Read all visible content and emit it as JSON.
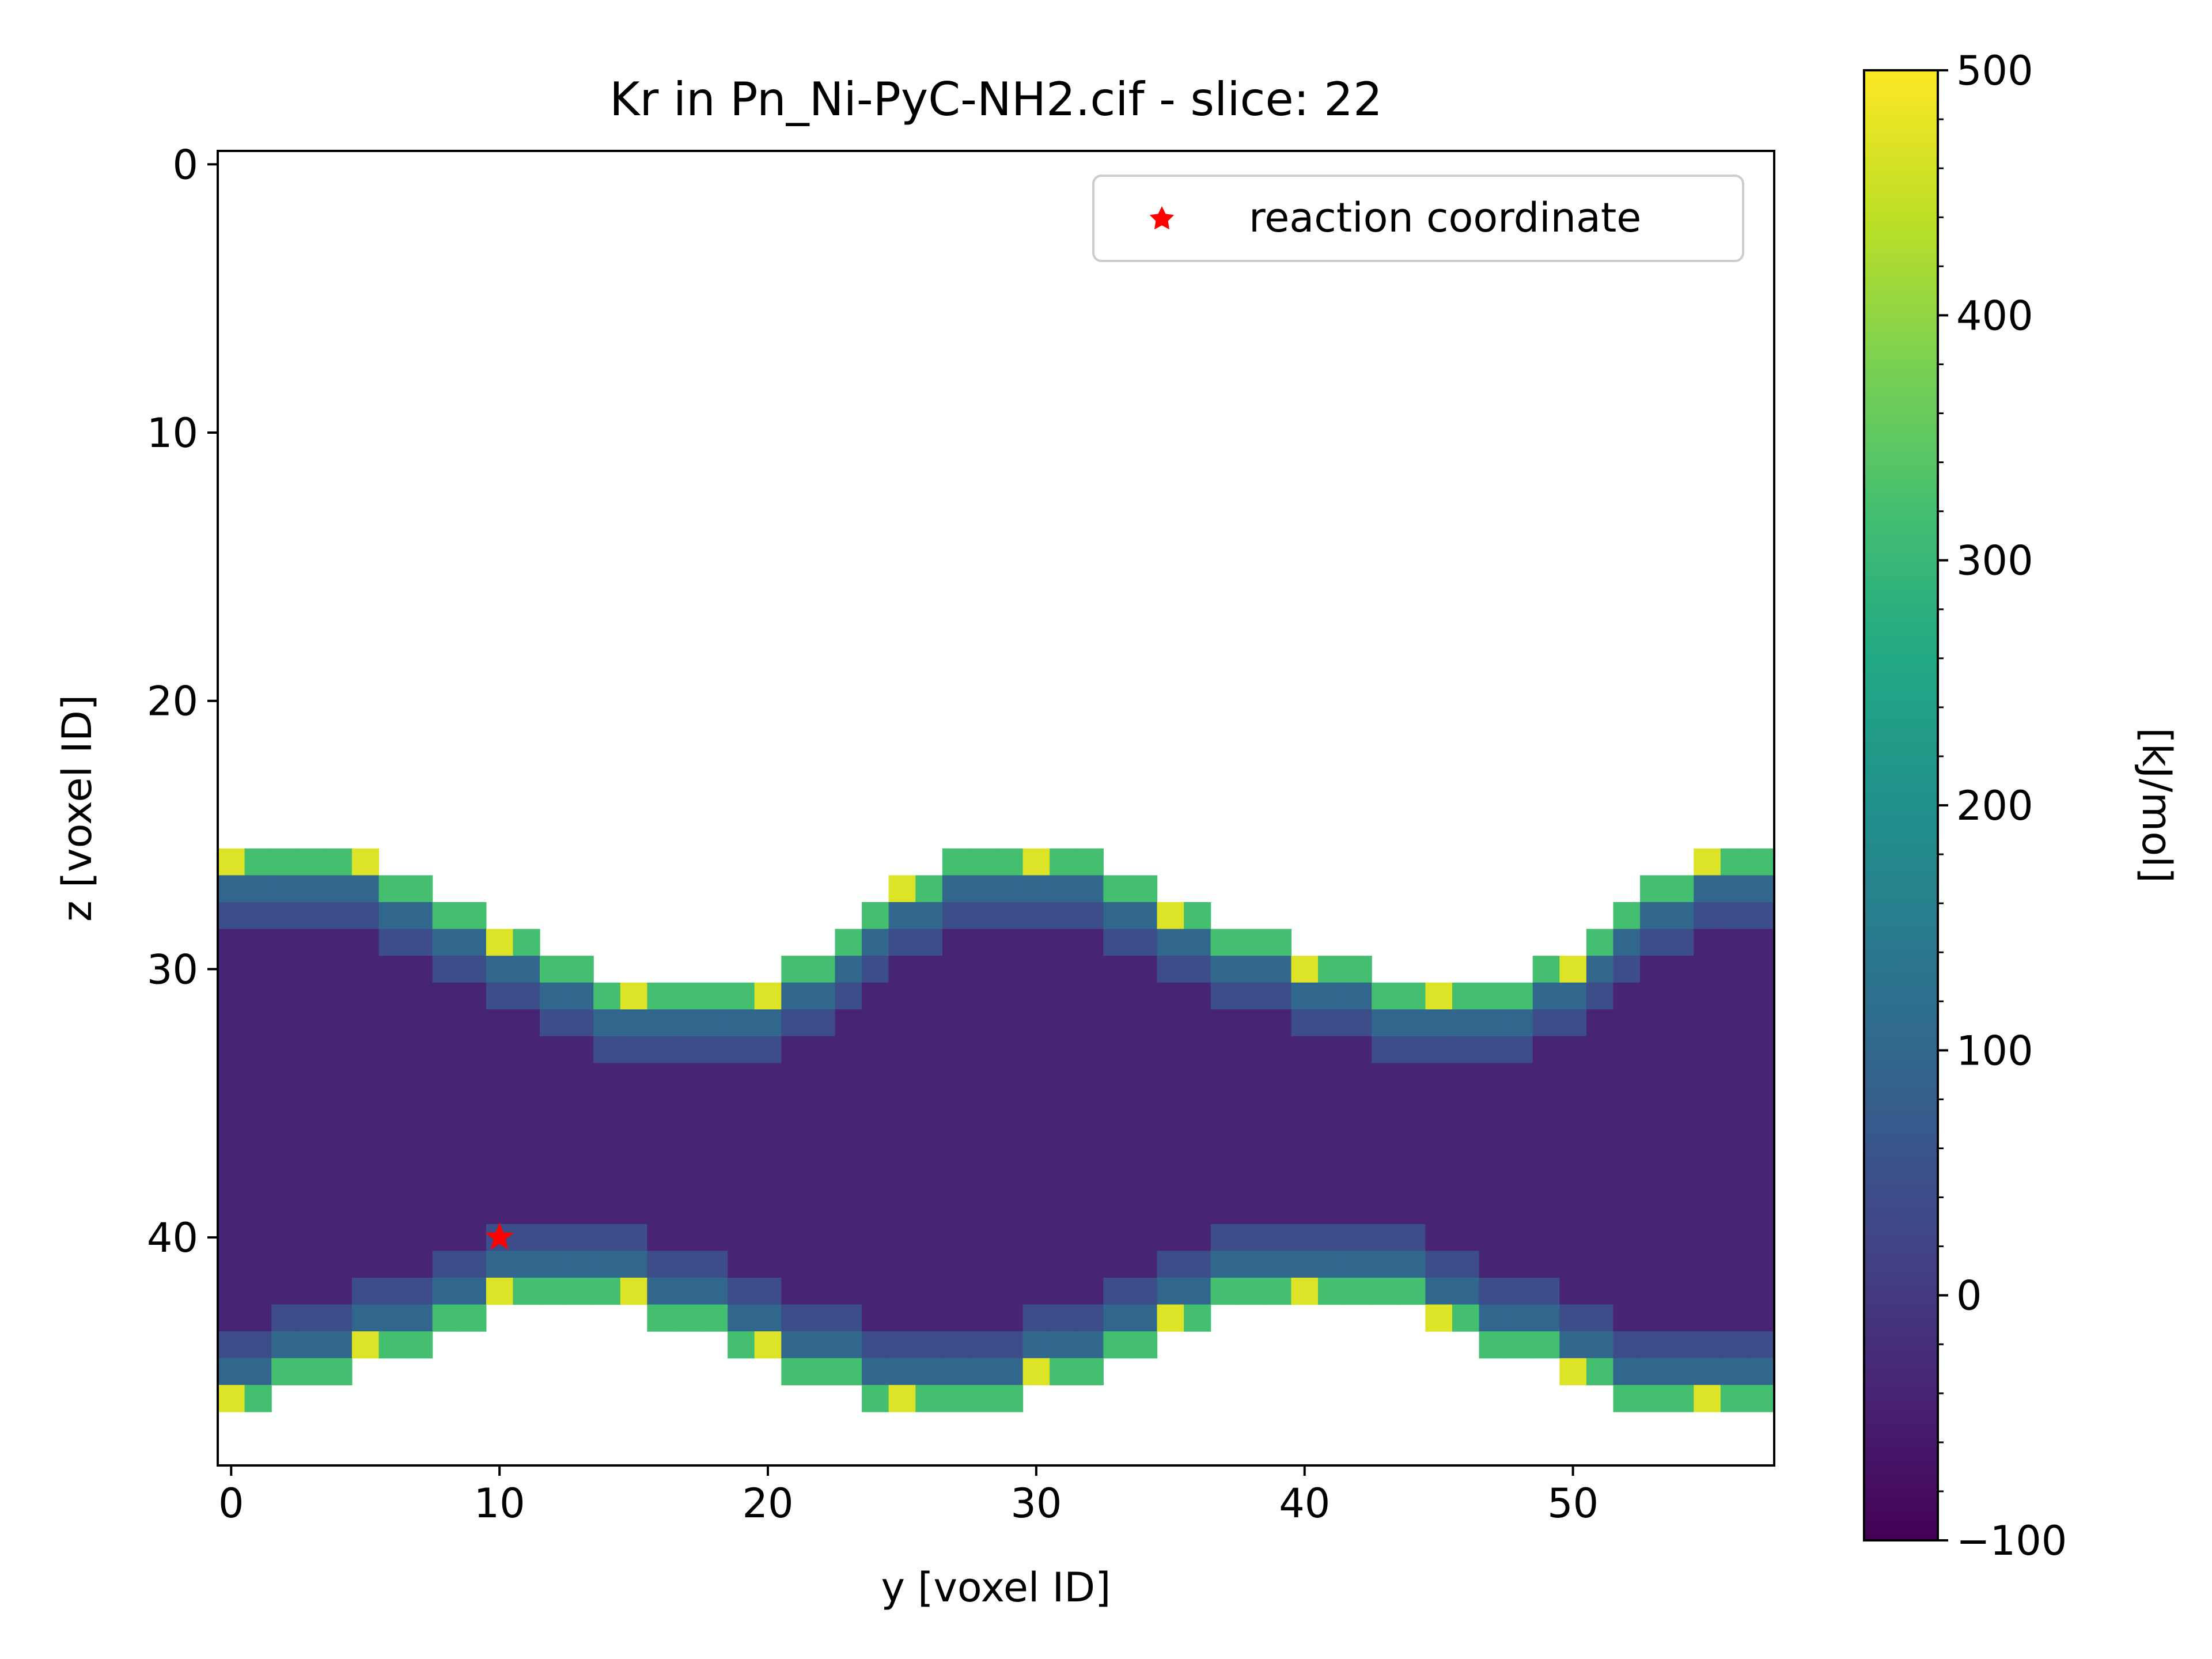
{
  "chart_data": {
    "type": "heatmap",
    "title": "Kr in Pn_Ni-PyC-NH2.cif - slice: 22",
    "xlabel": "y [voxel ID]",
    "ylabel": "z [voxel ID]",
    "colorbar_label": "[kJ/mol]",
    "colormap": "viridis",
    "xlim": [
      -0.5,
      57.5
    ],
    "ylim": [
      48.5,
      -0.5
    ],
    "clim": [
      -100,
      500
    ],
    "x_ticks": [
      0,
      10,
      20,
      30,
      40,
      50
    ],
    "y_ticks": [
      0,
      10,
      20,
      30,
      40
    ],
    "colorbar_ticks": [
      500,
      400,
      300,
      200,
      100,
      0,
      -100
    ],
    "colorbar_tick_labels": [
      "500",
      "400",
      "300",
      "200",
      "100",
      "0",
      "−100"
    ],
    "grid": false,
    "legend": {
      "placement": "upper right",
      "label": "reaction coordinate",
      "color": "#ff0000",
      "marker": "star"
    },
    "reaction_coordinate": {
      "y": 10,
      "z": 40
    },
    "channel_description": "energy values shown only inside a wavy channel; outside is blank (white)",
    "channel_boundaries": {
      "y": [
        0,
        1,
        2,
        3,
        4,
        5,
        6,
        7,
        8,
        9,
        10,
        11,
        12,
        13,
        14,
        15,
        16,
        17,
        18,
        19,
        20,
        21,
        22,
        23,
        24,
        25,
        26,
        27,
        28,
        29,
        30,
        31,
        32,
        33,
        34,
        35,
        36,
        37,
        38,
        39,
        40,
        41,
        42,
        43,
        44,
        45,
        46,
        47,
        48,
        49,
        50,
        51,
        52,
        53,
        54,
        55,
        56,
        57
      ],
      "z_top": [
        26,
        26,
        26,
        26,
        26,
        26,
        27,
        27,
        28,
        28,
        29,
        29,
        30,
        30,
        31,
        31,
        31,
        31,
        31,
        31,
        31,
        30,
        30,
        29,
        28,
        27,
        27,
        26,
        26,
        26,
        26,
        26,
        26,
        27,
        27,
        28,
        28,
        29,
        29,
        29,
        30,
        30,
        30,
        31,
        31,
        31,
        31,
        31,
        31,
        30,
        30,
        29,
        28,
        27,
        27,
        26,
        26,
        26
      ],
      "z_bottom": [
        46,
        46,
        45,
        45,
        45,
        44,
        44,
        44,
        43,
        43,
        42,
        42,
        42,
        42,
        42,
        42,
        43,
        43,
        43,
        44,
        44,
        45,
        45,
        45,
        46,
        46,
        46,
        46,
        46,
        46,
        45,
        45,
        45,
        44,
        44,
        43,
        43,
        42,
        42,
        42,
        42,
        42,
        42,
        42,
        42,
        43,
        43,
        44,
        44,
        44,
        45,
        45,
        46,
        46,
        46,
        46,
        46,
        46
      ]
    },
    "energy_levels_kj_mol": {
      "channel_center": -40,
      "near_wall_rows": 40,
      "wall_edge_rows": 320,
      "hot_spots": 470
    }
  }
}
